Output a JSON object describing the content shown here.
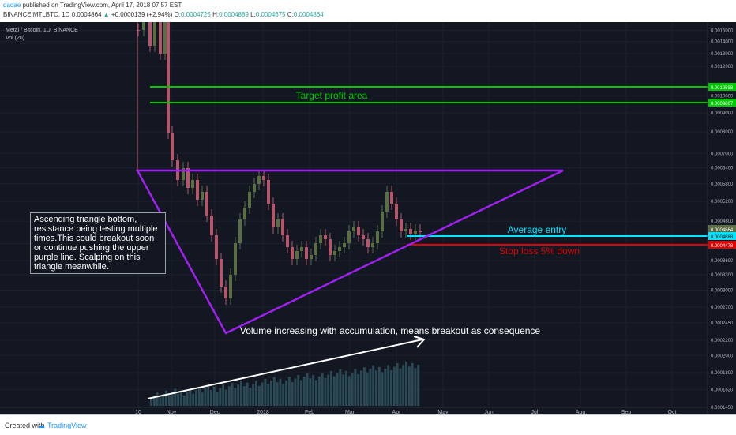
{
  "header": {
    "user": "dadae",
    "published_text": "published on TradingView.com, April 17, 2018 07:57 EST",
    "symbol": "BINANCE:MTLBTC, 1D",
    "last": "0.0004864",
    "change": "+0.0000139 (+2.94%)",
    "o_label": "O:",
    "o_value": "0.0004725",
    "h_label": "H:",
    "h_value": "0.0004889",
    "l_label": "L:",
    "l_value": "0.0004675",
    "c_label": "C:",
    "c_value": "0.0004864"
  },
  "legend": {
    "symbol_desc": "Metal / Bitcoin, 1D, BINANCE",
    "volume": "Vol (20)"
  },
  "footer": {
    "created_with": "Created with",
    "brand": "TradingView"
  },
  "colors": {
    "background": "#131722",
    "up_candle": "#5a6e44",
    "down_candle": "#b5566a",
    "triangle": "#a020f0",
    "target": "#00c800",
    "entry": "#00e5ff",
    "stop": "#e00000",
    "volume": "#2c4a55"
  },
  "chart_data": {
    "type": "candlestick",
    "title": "Metal / Bitcoin, 1D, BINANCE",
    "y_scale": "log",
    "ylim": [
      0.000145,
      0.00158
    ],
    "x_axis_ticks": [
      "10",
      "Nov",
      "Dec",
      "2018",
      "Feb",
      "Mar",
      "Apr",
      "May",
      "Jun",
      "Jul",
      "Aug",
      "Sep",
      "Oct"
    ],
    "y_axis_ticks": [
      "0.0015000",
      "0.0014000",
      "0.0013000",
      "0.0012000",
      "0.0010000",
      "0.0009000",
      "0.0008000",
      "0.0007000",
      "0.0006400",
      "0.0005800",
      "0.0005200",
      "0.0004600",
      "0.0004000",
      "0.0003600",
      "0.0003300",
      "0.0003000",
      "0.0002700",
      "0.0002450",
      "0.0002200",
      "0.0002000",
      "0.0001800",
      "0.0001620",
      "0.0001450"
    ],
    "price_labels": {
      "target_upper": "0.0010598",
      "target_lower": "0.0009867",
      "last_price": "0.0004864",
      "average_entry": "0.0004688",
      "stop_loss": "0.0004478"
    },
    "levels": {
      "target_upper": 0.0010598,
      "target_lower": 0.0009867,
      "average_entry": 0.0004688,
      "stop_loss": 0.0004478,
      "resistance": 0.00069
    },
    "annotations": {
      "target": "Target profit area",
      "average_entry": "Average entry",
      "stop_loss": "Stop loss 5% down",
      "volume_note": "Volume increasing with accumulation, means breakout as consequence",
      "triangle_note": "Ascending triangle bottom, resistance being testing multiple times.This could breakout soon or continue pushing the upper purple line. Scalping on this triangle meanwhile."
    }
  }
}
